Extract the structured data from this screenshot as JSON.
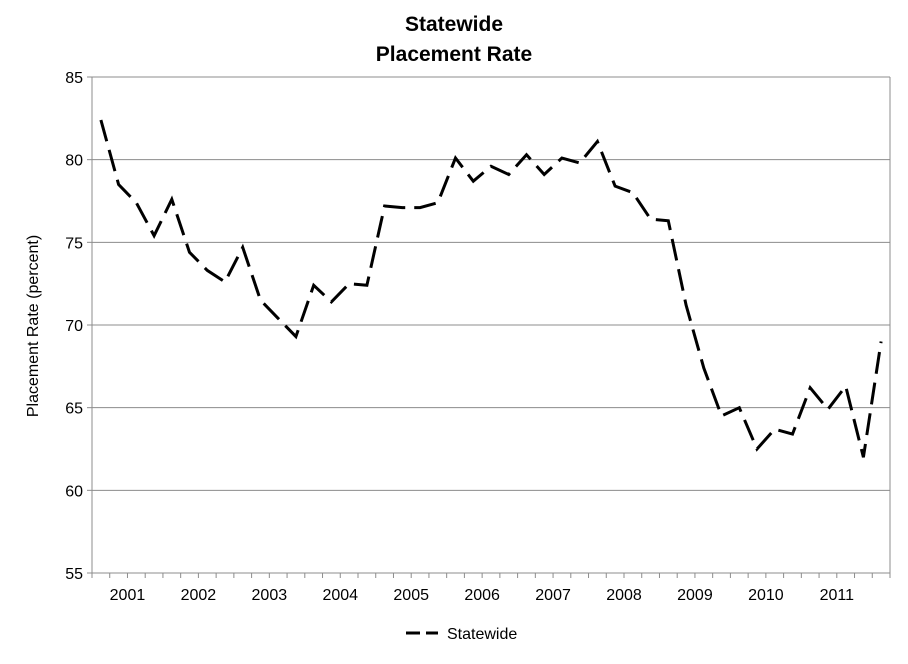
{
  "chart_data": {
    "type": "line",
    "title": [
      "Statewide",
      "Placement Rate"
    ],
    "xlabel": "",
    "ylabel": "Placement Rate (percent)",
    "ylim": [
      55,
      85
    ],
    "yticks": [
      55,
      60,
      65,
      70,
      75,
      80,
      85
    ],
    "xlim": [
      2000.5,
      2011.75
    ],
    "xtick_labels": [
      "2001",
      "2002",
      "2003",
      "2004",
      "2005",
      "2006",
      "2007",
      "2008",
      "2009",
      "2010",
      "2011"
    ],
    "grid": "horizontal",
    "legend": "bottom",
    "series": [
      {
        "name": "Statewide",
        "color": "#000000",
        "dash": "dashed",
        "x": [
          2000.625,
          2000.875,
          2001.125,
          2001.375,
          2001.625,
          2001.875,
          2002.125,
          2002.375,
          2002.625,
          2002.875,
          2003.125,
          2003.375,
          2003.625,
          2003.875,
          2004.125,
          2004.375,
          2004.625,
          2004.875,
          2005.125,
          2005.375,
          2005.625,
          2005.875,
          2006.125,
          2006.375,
          2006.625,
          2006.875,
          2007.125,
          2007.375,
          2007.625,
          2007.875,
          2008.125,
          2008.375,
          2008.625,
          2008.875,
          2009.125,
          2009.375,
          2009.625,
          2009.875,
          2010.125,
          2010.375,
          2010.625,
          2010.875,
          2011.125,
          2011.375,
          2011.625
        ],
        "values": [
          82.4,
          78.5,
          77.4,
          75.4,
          77.6,
          74.4,
          73.3,
          72.6,
          74.7,
          71.5,
          70.4,
          69.3,
          72.4,
          71.4,
          72.5,
          72.4,
          77.2,
          77.1,
          77.1,
          77.4,
          80.1,
          78.7,
          79.6,
          79.1,
          80.3,
          79.1,
          80.1,
          79.8,
          81.1,
          78.4,
          78.0,
          76.4,
          76.3,
          71.2,
          67.4,
          64.5,
          65.0,
          62.5,
          63.7,
          63.4,
          66.2,
          64.9,
          66.3,
          62.0,
          69.0
        ]
      }
    ]
  }
}
